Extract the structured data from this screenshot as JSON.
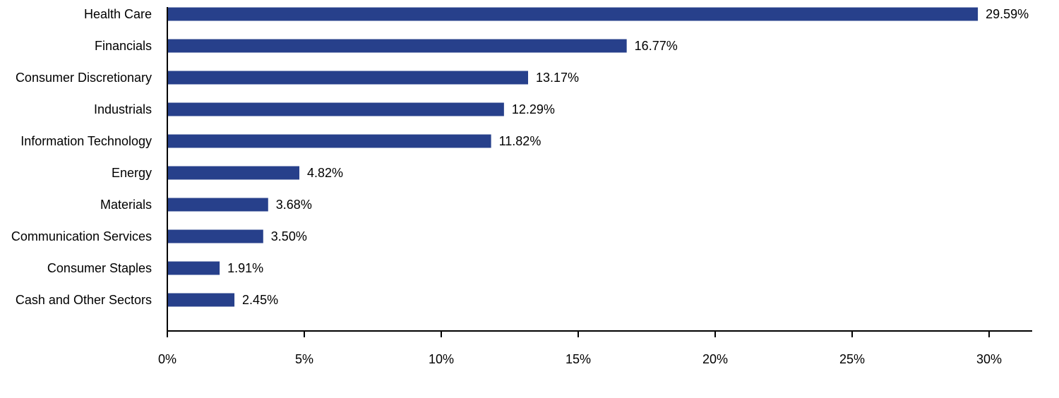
{
  "chart_data": {
    "type": "bar",
    "orientation": "horizontal",
    "categories": [
      "Health Care",
      "Financials",
      "Consumer Discretionary",
      "Industrials",
      "Information Technology",
      "Energy",
      "Materials",
      "Communication Services",
      "Consumer Staples",
      "Cash and Other Sectors"
    ],
    "values": [
      29.59,
      16.77,
      13.17,
      12.29,
      11.82,
      4.82,
      3.68,
      3.5,
      1.91,
      2.45
    ],
    "value_labels": [
      "29.59%",
      "16.77%",
      "13.17%",
      "12.29%",
      "11.82%",
      "4.82%",
      "3.68%",
      "3.50%",
      "1.91%",
      "2.45%"
    ],
    "xlim": [
      0,
      31.5
    ],
    "xticks": [
      0,
      5,
      10,
      15,
      20,
      25,
      30
    ],
    "xtick_labels": [
      "0%",
      "5%",
      "10%",
      "15%",
      "20%",
      "25%",
      "30%"
    ],
    "title": "",
    "xlabel": "",
    "ylabel": "",
    "grid": false,
    "legend": "none",
    "bar_color": "#27408b"
  }
}
